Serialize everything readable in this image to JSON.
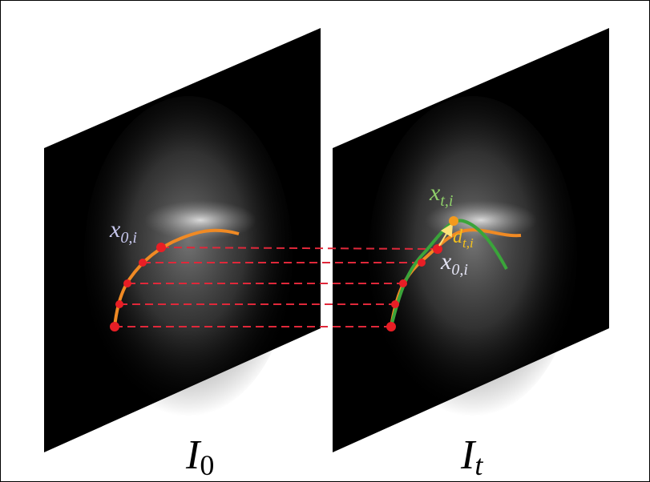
{
  "labels": {
    "left_point": {
      "base": "x",
      "sub": "0,i"
    },
    "target_point": {
      "base": "x",
      "sub": "t,i"
    },
    "displacement": {
      "base": "d",
      "sub": "t,i"
    },
    "right_point": {
      "base": "x",
      "sub": "0,i"
    },
    "left_image": {
      "base": "I",
      "sub": "0"
    },
    "right_image": {
      "base": "I",
      "sub": "t"
    }
  }
}
